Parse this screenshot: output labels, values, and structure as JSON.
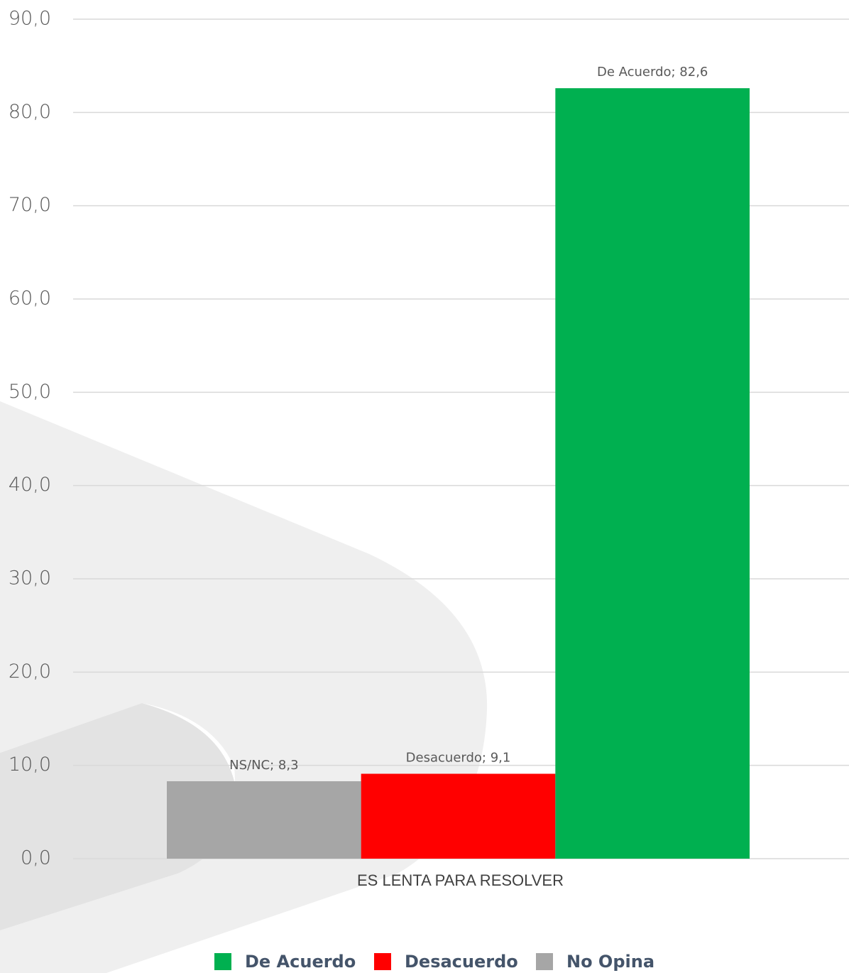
{
  "chart_data": {
    "type": "bar",
    "categories": [
      "ES LENTA PARA RESOLVER"
    ],
    "series": [
      {
        "name": "No Opina",
        "color": "#a6a6a6",
        "values": [
          8.3
        ],
        "value_labels": [
          "NS/NC; 8,3"
        ]
      },
      {
        "name": "Desacuerdo",
        "color": "#ff0000",
        "values": [
          9.1
        ],
        "value_labels": [
          "Desacuerdo; 9,1"
        ]
      },
      {
        "name": "De Acuerdo",
        "color": "#00b050",
        "values": [
          82.6
        ],
        "value_labels": [
          "De Acuerdo; 82,6"
        ]
      }
    ],
    "ylim": [
      0,
      90
    ],
    "yticks": [
      {
        "value": 0,
        "label": "0,0"
      },
      {
        "value": 10,
        "label": "10,0"
      },
      {
        "value": 20,
        "label": "20,0"
      },
      {
        "value": 30,
        "label": "30,0"
      },
      {
        "value": 40,
        "label": "40,0"
      },
      {
        "value": 50,
        "label": "50,0"
      },
      {
        "value": 60,
        "label": "60,0"
      },
      {
        "value": 70,
        "label": "70,0"
      },
      {
        "value": 80,
        "label": "80,0"
      },
      {
        "value": 90,
        "label": "90,0"
      }
    ],
    "grid": true,
    "legend": "bottom"
  }
}
